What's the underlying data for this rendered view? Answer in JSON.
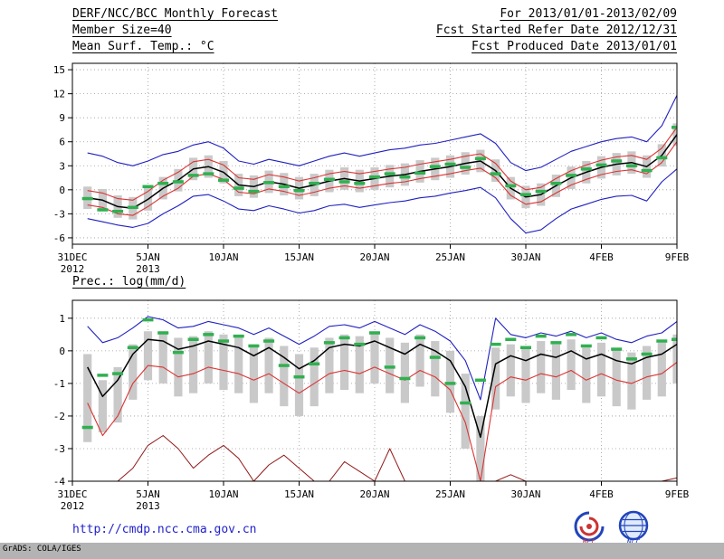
{
  "header": {
    "title": "DERF/NCC/BCC Monthly Forecast",
    "member_size": "Member Size=40",
    "variable": "Mean Surf. Temp.: °C",
    "for_range": "For 2013/01/01-2013/02/09",
    "refer_date": "Fcst Started Refer Date 2012/12/31",
    "produced_date": "Fcst Produced Date 2013/01/01"
  },
  "footer": {
    "url": "http://cmdp.ncc.cma.gov.cn",
    "grads_credit": "GrADS: COLA/IGES",
    "bcc_label": "BCC",
    "ncc_label": "NCC"
  },
  "chart_data": [
    {
      "id": "temperature",
      "type": "line",
      "title": "Mean Surf. Temp.: °C",
      "ylabel": "",
      "x_offset_days": 1,
      "xlim": [
        0,
        40
      ],
      "ylim": [
        -6.8,
        15.8
      ],
      "yticks": [
        -6,
        -3,
        0,
        3,
        6,
        9,
        12,
        15
      ],
      "xticks": [
        {
          "pos": 0,
          "label": "31DEC",
          "sublabel": "2012"
        },
        {
          "pos": 5,
          "label": "5JAN",
          "sublabel": "2013"
        },
        {
          "pos": 10,
          "label": "10JAN"
        },
        {
          "pos": 15,
          "label": "15JAN"
        },
        {
          "pos": 20,
          "label": "20JAN"
        },
        {
          "pos": 25,
          "label": "25JAN"
        },
        {
          "pos": 30,
          "label": "30JAN"
        },
        {
          "pos": 35,
          "label": "4FEB"
        },
        {
          "pos": 40,
          "label": "9FEB"
        }
      ],
      "bars": {
        "name": "ensemble-spread-bars",
        "color": "#c9c9c9",
        "low": [
          -2.4,
          -2.7,
          -3.5,
          -3.7,
          -2.6,
          -1.2,
          -0.2,
          1.2,
          1.5,
          0.8,
          -0.8,
          -1.0,
          -0.4,
          -0.7,
          -1.2,
          -0.8,
          -0.3,
          0.0,
          -0.3,
          0.0,
          0.3,
          0.5,
          0.9,
          1.2,
          1.5,
          1.9,
          2.2,
          1.0,
          -1.2,
          -2.3,
          -2.0,
          -0.9,
          0.1,
          0.8,
          1.4,
          1.8,
          2.0,
          1.5,
          2.9,
          5.5
        ],
        "high": [
          0.4,
          0.1,
          -0.7,
          -0.9,
          0.2,
          1.6,
          2.6,
          4.0,
          4.3,
          3.6,
          2.0,
          1.8,
          2.4,
          2.1,
          1.6,
          2.0,
          2.5,
          2.8,
          2.5,
          2.8,
          3.1,
          3.3,
          3.7,
          4.0,
          4.3,
          4.7,
          5.0,
          3.8,
          1.6,
          0.5,
          0.8,
          1.9,
          2.9,
          3.6,
          4.2,
          4.6,
          4.8,
          4.3,
          5.7,
          8.3
        ]
      },
      "dashes": {
        "name": "observation-dashes",
        "color": "#30b050",
        "values": [
          -1.1,
          -2.5,
          -2.7,
          -2.2,
          0.4,
          0.8,
          1.0,
          1.8,
          2.0,
          1.2,
          0.2,
          -0.2,
          0.9,
          0.4,
          -0.1,
          0.8,
          1.3,
          1.0,
          0.8,
          1.6,
          2.0,
          1.6,
          2.1,
          2.9,
          3.2,
          2.8,
          3.9,
          2.0,
          0.5,
          -0.6,
          -0.2,
          0.8,
          1.8,
          2.6,
          3.1,
          3.6,
          3.0,
          2.4,
          4.0,
          7.8
        ]
      },
      "lines": [
        {
          "name": "ensemble-max",
          "color": "#2020c0",
          "width": 1.1,
          "values": [
            4.6,
            4.2,
            3.4,
            3.0,
            3.6,
            4.4,
            4.8,
            5.6,
            6.0,
            5.2,
            3.6,
            3.2,
            3.8,
            3.4,
            3.0,
            3.6,
            4.2,
            4.6,
            4.2,
            4.6,
            5.0,
            5.2,
            5.6,
            5.8,
            6.2,
            6.6,
            7.0,
            5.8,
            3.4,
            2.4,
            2.8,
            3.8,
            4.8,
            5.4,
            6.0,
            6.4,
            6.6,
            6.0,
            8.0,
            11.8
          ]
        },
        {
          "name": "ensemble-min",
          "color": "#2020c0",
          "width": 1.1,
          "values": [
            -3.6,
            -4.0,
            -4.4,
            -4.7,
            -4.2,
            -3.0,
            -2.0,
            -0.8,
            -0.6,
            -1.4,
            -2.4,
            -2.6,
            -2.0,
            -2.4,
            -2.9,
            -2.6,
            -2.0,
            -1.8,
            -2.2,
            -1.9,
            -1.6,
            -1.4,
            -1.0,
            -0.8,
            -0.4,
            -0.1,
            0.3,
            -1.0,
            -3.6,
            -5.4,
            -5.0,
            -3.6,
            -2.4,
            -1.8,
            -1.2,
            -0.8,
            -0.7,
            -1.4,
            1.0,
            2.6
          ]
        },
        {
          "name": "spread-upper",
          "color": "#dd3333",
          "width": 1.1,
          "values": [
            -0.1,
            -0.4,
            -1.1,
            -1.3,
            -0.2,
            1.2,
            2.2,
            3.5,
            3.8,
            3.1,
            1.5,
            1.3,
            1.9,
            1.6,
            1.1,
            1.5,
            2.0,
            2.3,
            2.0,
            2.3,
            2.6,
            2.8,
            3.2,
            3.5,
            3.8,
            4.2,
            4.5,
            3.3,
            1.1,
            0.0,
            0.3,
            1.4,
            2.4,
            3.1,
            3.7,
            4.1,
            4.3,
            3.8,
            5.2,
            7.8
          ]
        },
        {
          "name": "spread-lower",
          "color": "#dd3333",
          "width": 1.1,
          "values": [
            -1.9,
            -2.2,
            -3.0,
            -3.2,
            -2.1,
            -0.8,
            0.2,
            1.7,
            2.0,
            1.3,
            -0.3,
            -0.5,
            0.1,
            -0.2,
            -0.7,
            -0.3,
            0.2,
            0.5,
            0.2,
            0.5,
            0.8,
            1.0,
            1.4,
            1.7,
            2.0,
            2.4,
            2.7,
            1.5,
            -0.7,
            -1.8,
            -1.5,
            -0.4,
            0.6,
            1.3,
            1.9,
            2.3,
            2.5,
            2.0,
            3.4,
            6.0
          ]
        },
        {
          "name": "ensemble-mean",
          "color": "#000000",
          "width": 1.5,
          "values": [
            -1.0,
            -1.3,
            -2.1,
            -2.3,
            -1.2,
            0.2,
            1.2,
            2.6,
            2.9,
            2.2,
            0.6,
            0.4,
            1.0,
            0.7,
            0.2,
            0.6,
            1.1,
            1.4,
            1.1,
            1.4,
            1.7,
            1.9,
            2.3,
            2.6,
            2.9,
            3.3,
            3.6,
            2.4,
            0.2,
            -0.9,
            -0.6,
            0.5,
            1.5,
            2.2,
            2.8,
            3.2,
            3.4,
            2.9,
            4.3,
            6.9
          ]
        }
      ]
    },
    {
      "id": "precipitation",
      "type": "line",
      "title": "Prec.: log(mm/d)",
      "ylabel": "",
      "x_offset_days": 1,
      "xlim": [
        0,
        40
      ],
      "ylim": [
        -4,
        1.55
      ],
      "yticks": [
        -4,
        -3,
        -2,
        -1,
        0,
        1
      ],
      "xticks": [
        {
          "pos": 0,
          "label": "31DEC",
          "sublabel": "2012"
        },
        {
          "pos": 5,
          "label": "5JAN",
          "sublabel": "2013"
        },
        {
          "pos": 10,
          "label": "10JAN"
        },
        {
          "pos": 15,
          "label": "15JAN"
        },
        {
          "pos": 20,
          "label": "20JAN"
        },
        {
          "pos": 25,
          "label": "25JAN"
        },
        {
          "pos": 30,
          "label": "30JAN"
        },
        {
          "pos": 35,
          "label": "4FEB"
        },
        {
          "pos": 40,
          "label": "9FEB"
        }
      ],
      "bars": {
        "name": "ensemble-spread-bars",
        "color": "#c9c9c9",
        "low": [
          -2.8,
          -2.5,
          -2.2,
          -1.5,
          -0.9,
          -1.0,
          -1.4,
          -1.3,
          -1.0,
          -1.2,
          -1.3,
          -1.6,
          -1.3,
          -1.7,
          -2.0,
          -1.7,
          -1.3,
          -1.2,
          -1.3,
          -1.0,
          -1.3,
          -1.6,
          -1.1,
          -1.4,
          -1.9,
          -3.0,
          -4.0,
          -1.8,
          -1.4,
          -1.6,
          -1.3,
          -1.5,
          -1.2,
          -1.6,
          -1.4,
          -1.7,
          -1.8,
          -1.5,
          -1.4,
          -1.0
        ],
        "high": [
          -0.1,
          -0.9,
          -0.5,
          0.2,
          0.6,
          0.6,
          0.4,
          0.45,
          0.6,
          0.5,
          0.4,
          0.2,
          0.4,
          0.15,
          -0.1,
          0.1,
          0.4,
          0.5,
          0.45,
          0.6,
          0.4,
          0.25,
          0.5,
          0.3,
          0.0,
          -0.7,
          -2.0,
          0.1,
          0.2,
          0.1,
          0.3,
          0.2,
          0.35,
          0.1,
          0.25,
          0.05,
          -0.05,
          0.15,
          0.25,
          0.5
        ]
      },
      "dashes": {
        "name": "observation-dashes",
        "color": "#30b050",
        "values": [
          -2.35,
          -0.75,
          -0.7,
          0.1,
          0.95,
          0.55,
          -0.05,
          0.35,
          0.5,
          0.3,
          0.45,
          0.15,
          0.3,
          -0.45,
          -0.8,
          -0.4,
          0.25,
          0.4,
          0.2,
          0.55,
          -0.5,
          -0.85,
          0.4,
          -0.2,
          -1.0,
          -1.6,
          -0.9,
          0.2,
          0.35,
          0.1,
          0.45,
          0.25,
          0.5,
          0.15,
          0.4,
          0.05,
          -0.25,
          -0.1,
          0.3,
          0.35
        ]
      },
      "lines": [
        {
          "name": "ensemble-max",
          "color": "#2020c0",
          "width": 1.1,
          "values": [
            0.75,
            0.25,
            0.4,
            0.7,
            1.05,
            0.95,
            0.7,
            0.75,
            0.9,
            0.8,
            0.7,
            0.5,
            0.7,
            0.45,
            0.2,
            0.45,
            0.75,
            0.8,
            0.7,
            0.9,
            0.7,
            0.5,
            0.8,
            0.6,
            0.3,
            -0.3,
            -1.5,
            1.0,
            0.5,
            0.4,
            0.55,
            0.45,
            0.6,
            0.4,
            0.55,
            0.35,
            0.25,
            0.45,
            0.55,
            0.9
          ]
        },
        {
          "name": "ensemble-min",
          "color": "#901818",
          "width": 1.0,
          "values": [
            -4.0,
            -4.0,
            -4.0,
            -3.6,
            -2.9,
            -2.6,
            -3.0,
            -3.6,
            -3.2,
            -2.9,
            -3.3,
            -4.0,
            -3.5,
            -3.2,
            -3.6,
            -4.0,
            -4.0,
            -3.4,
            -3.7,
            -4.0,
            -3.0,
            -4.0,
            -4.0,
            -4.0,
            -4.0,
            -4.0,
            -4.0,
            -4.0,
            -3.8,
            -4.0,
            -4.0,
            -4.0,
            -4.0,
            -4.0,
            -4.0,
            -4.0,
            -4.0,
            -4.0,
            -4.0,
            -3.9
          ]
        },
        {
          "name": "spread-lower",
          "color": "#dd3333",
          "width": 1.1,
          "values": [
            -1.6,
            -2.6,
            -2.0,
            -1.0,
            -0.45,
            -0.5,
            -0.8,
            -0.7,
            -0.5,
            -0.6,
            -0.7,
            -0.9,
            -0.7,
            -1.0,
            -1.3,
            -1.0,
            -0.7,
            -0.6,
            -0.7,
            -0.5,
            -0.7,
            -0.9,
            -0.6,
            -0.8,
            -1.2,
            -2.2,
            -4.0,
            -1.1,
            -0.8,
            -0.9,
            -0.7,
            -0.8,
            -0.6,
            -0.9,
            -0.7,
            -0.9,
            -1.0,
            -0.8,
            -0.7,
            -0.35
          ]
        },
        {
          "name": "ensemble-mean",
          "color": "#000000",
          "width": 1.5,
          "values": [
            -0.5,
            -1.4,
            -0.9,
            -0.1,
            0.35,
            0.3,
            0.05,
            0.15,
            0.3,
            0.2,
            0.1,
            -0.15,
            0.1,
            -0.2,
            -0.55,
            -0.3,
            0.1,
            0.2,
            0.15,
            0.3,
            0.1,
            -0.1,
            0.2,
            0.0,
            -0.3,
            -1.1,
            -2.65,
            -0.4,
            -0.15,
            -0.3,
            -0.1,
            -0.2,
            0.0,
            -0.25,
            -0.1,
            -0.3,
            -0.4,
            -0.2,
            -0.1,
            0.2
          ]
        }
      ]
    }
  ]
}
